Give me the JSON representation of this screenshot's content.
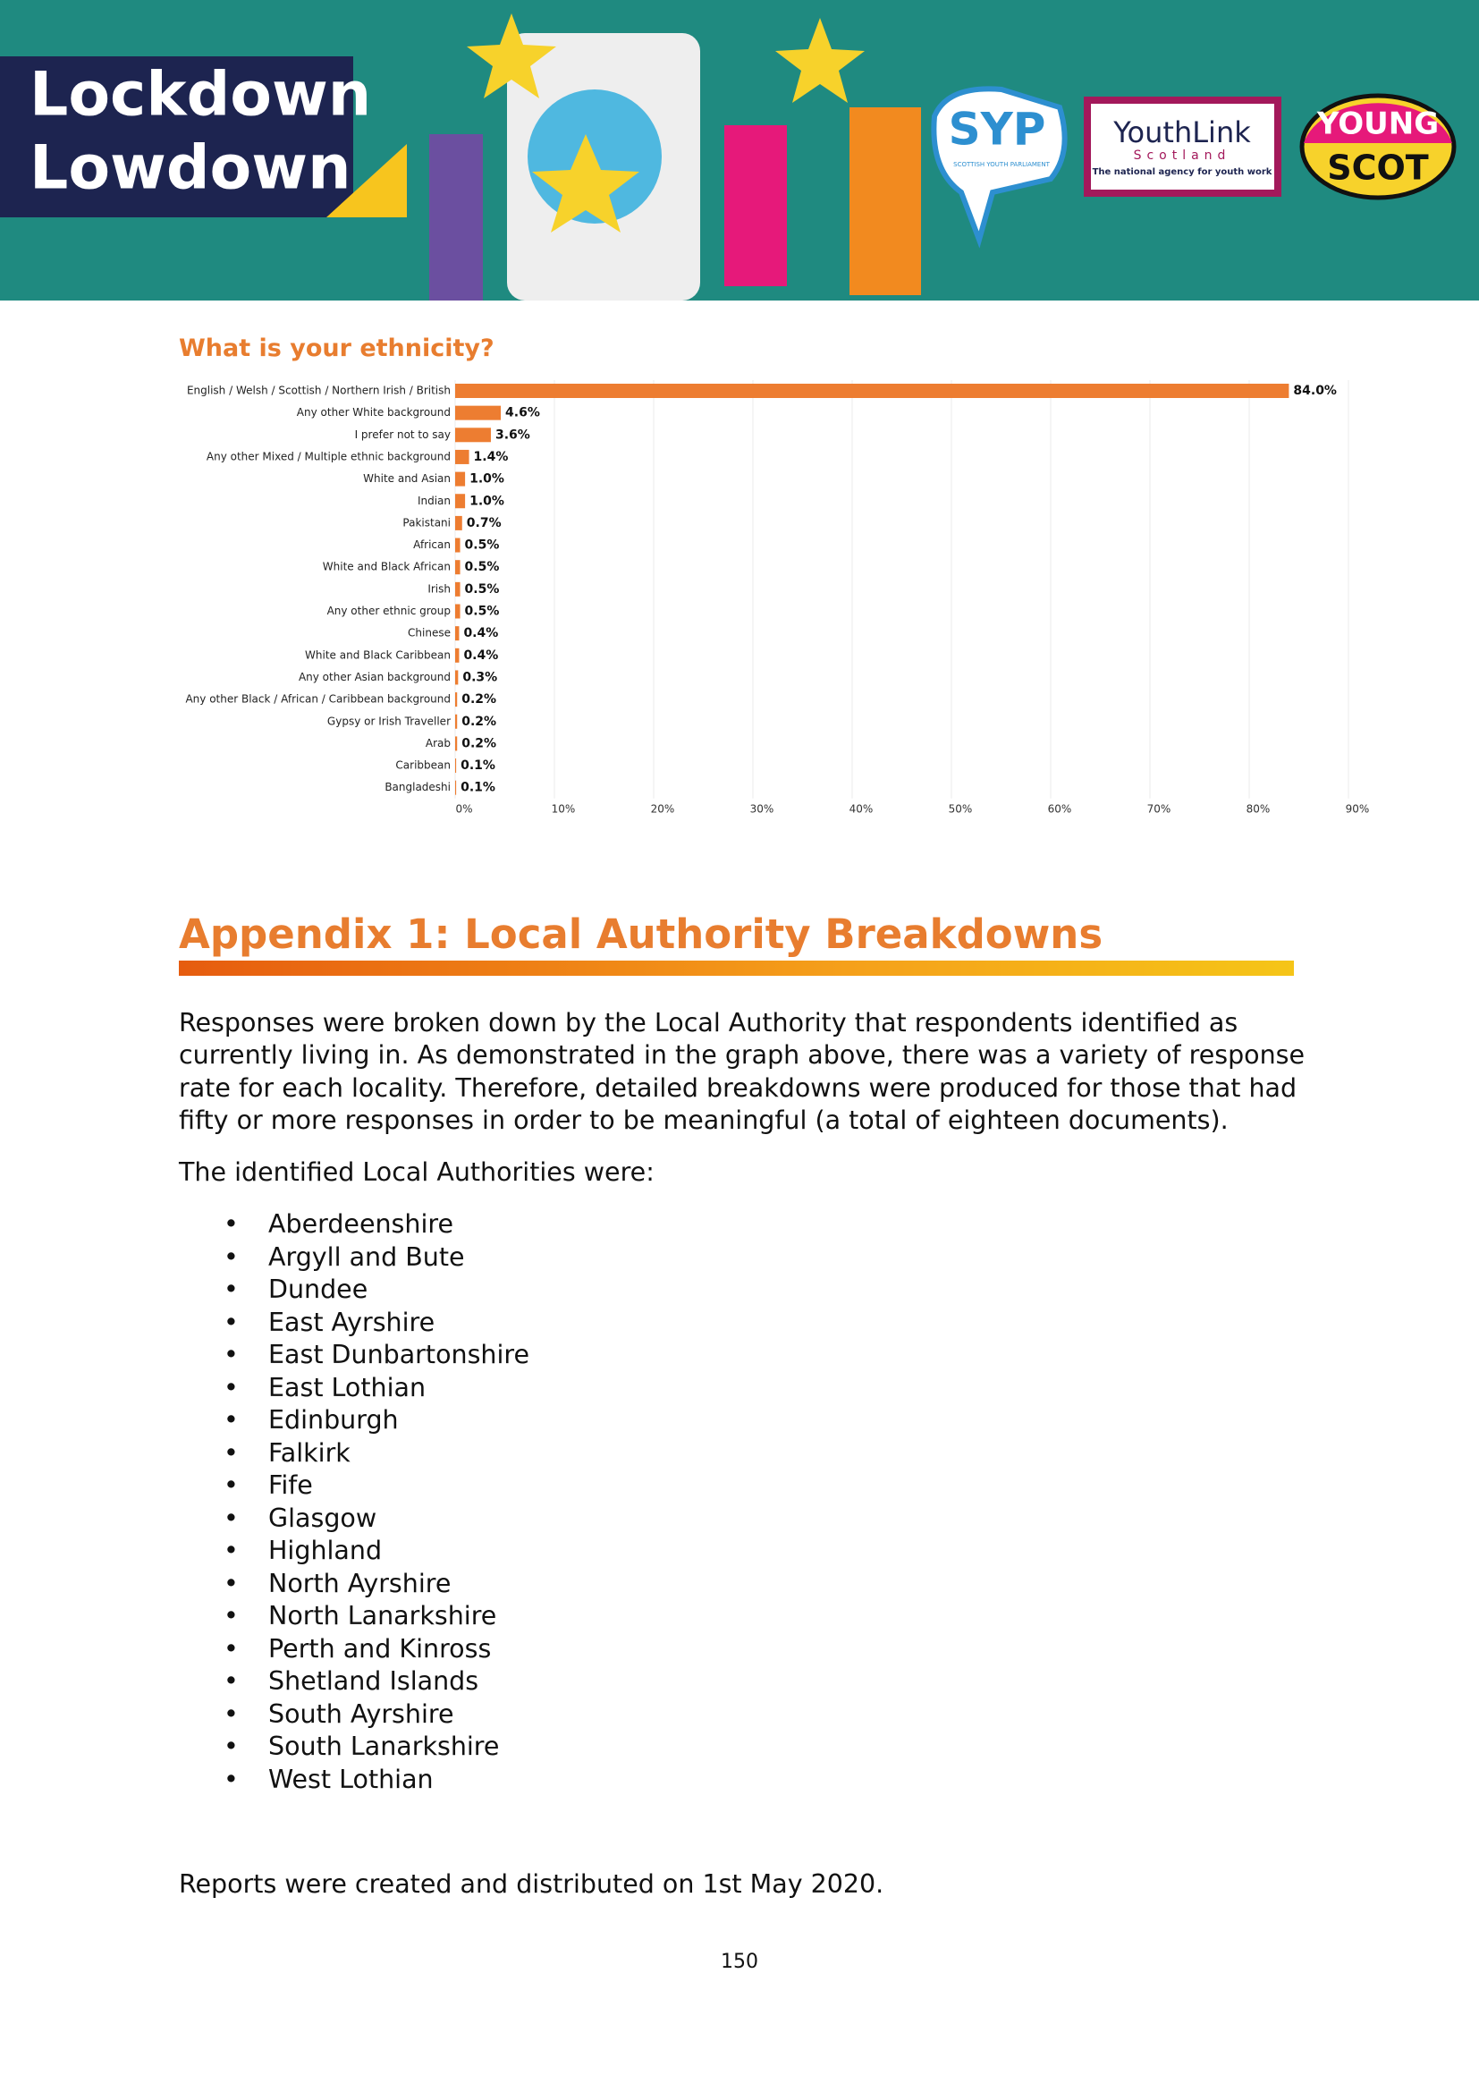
{
  "header": {
    "title_lines": [
      "Lockdown",
      "Lowdown"
    ],
    "logos": {
      "syp": "SYP",
      "syp_sub": "SCOTTISH YOUTH PARLIAMENT",
      "youthlink": "YouthLink",
      "youthlink_sub": "Scotland",
      "youthlink_tag": "The national agency for youth work",
      "youngscot_lines": [
        "YOUNG",
        "SCOT"
      ]
    }
  },
  "chart_data": {
    "type": "bar",
    "orientation": "horizontal",
    "title": "What is your ethnicity?",
    "categories": [
      "English / Welsh / Scottish / Northern Irish / British",
      "Any other White background",
      "I prefer not to say",
      "Any other Mixed / Multiple ethnic background",
      "White and Asian",
      "Indian",
      "Pakistani",
      "African",
      "White and Black African",
      "Irish",
      "Any other ethnic group",
      "Chinese",
      "White and Black Caribbean",
      "Any other Asian background",
      "Any other Black / African / Caribbean background",
      "Gypsy or Irish Traveller",
      "Arab",
      "Caribbean",
      "Bangladeshi"
    ],
    "values": [
      84.0,
      4.6,
      3.6,
      1.4,
      1.0,
      1.0,
      0.7,
      0.5,
      0.5,
      0.5,
      0.5,
      0.4,
      0.4,
      0.3,
      0.2,
      0.2,
      0.2,
      0.1,
      0.1
    ],
    "value_labels": [
      "84.0%",
      "4.6%",
      "3.6%",
      "1.4%",
      "1.0%",
      "1.0%",
      "0.7%",
      "0.5%",
      "0.5%",
      "0.5%",
      "0.5%",
      "0.4%",
      "0.4%",
      "0.3%",
      "0.2%",
      "0.2%",
      "0.2%",
      "0.1%",
      "0.1%"
    ],
    "color": "#ed7d31",
    "xlim": [
      0,
      90
    ],
    "xticks": [
      {
        "value": 0,
        "label": "0%"
      },
      {
        "value": 10,
        "label": "10%"
      },
      {
        "value": 20,
        "label": "20%"
      },
      {
        "value": 30,
        "label": "30%"
      },
      {
        "value": 40,
        "label": "40%"
      },
      {
        "value": 50,
        "label": "50%"
      },
      {
        "value": 60,
        "label": "60%"
      },
      {
        "value": 70,
        "label": "70%"
      },
      {
        "value": 80,
        "label": "80%"
      },
      {
        "value": 90,
        "label": "90%"
      }
    ],
    "grid": true
  },
  "appendix": {
    "heading": "Appendix 1: Local Authority Breakdowns",
    "paragraph_lines": [
      "Responses were broken down by the Local Authority that respondents identified as",
      "currently living in. As demonstrated in the graph above, there was a variety of response",
      "rate for each locality. Therefore, detailed breakdowns were produced for those that had",
      "fifty or more responses in order to be meaningful (a total of eighteen documents)."
    ],
    "list_intro": "The identified Local Authorities were:",
    "authorities": [
      "Aberdeenshire",
      "Argyll and Bute",
      "Dundee",
      "East Ayrshire",
      "East Dunbartonshire",
      "East Lothian",
      "Edinburgh",
      "Falkirk",
      "Fife",
      "Glasgow",
      "Highland",
      "North Ayrshire",
      "North Lanarkshire",
      "Perth and Kinross",
      "Shetland Islands",
      "South Ayrshire",
      "South Lanarkshire",
      "West Lothian"
    ],
    "closing": "Reports were created and distributed on 1st May 2020."
  },
  "footer": {
    "page_number": "150"
  }
}
